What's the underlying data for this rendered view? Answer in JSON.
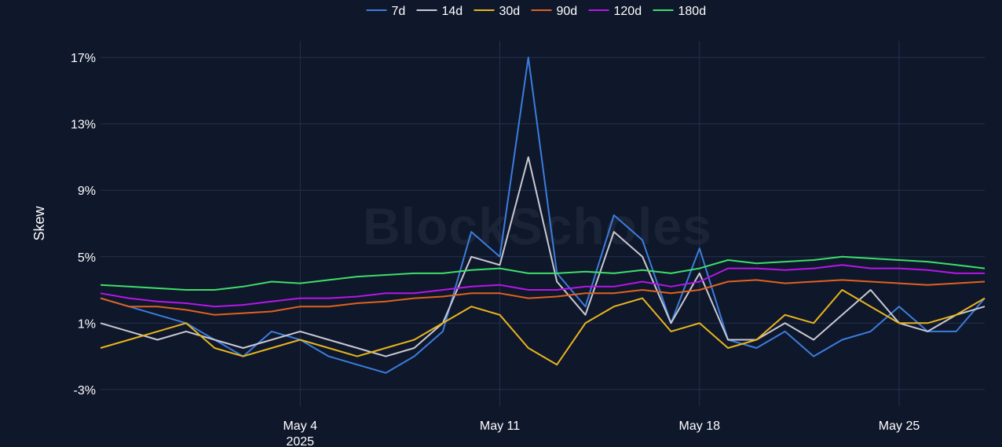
{
  "watermark": "BlockScholes",
  "colors": {
    "background": "#0f172b",
    "grid": "#25304d",
    "text": "#ffffff"
  },
  "chart_data": {
    "type": "line",
    "ylabel": "Skew",
    "xlabel": "",
    "ylim": [
      -4,
      18
    ],
    "yticks": [
      -3,
      1,
      5,
      9,
      13,
      17
    ],
    "ytick_labels": [
      "-3%",
      "1%",
      "5%",
      "9%",
      "13%",
      "17%"
    ],
    "x_range": [
      "2025-04-27",
      "2025-05-28"
    ],
    "xticks": [
      "2025-05-04",
      "2025-05-11",
      "2025-05-18",
      "2025-05-25"
    ],
    "xtick_labels": [
      "May 4",
      "May 11",
      "May 18",
      "May 25"
    ],
    "xtick_year_label": "2025",
    "grid": true,
    "legend_position": "top-center",
    "series": [
      {
        "name": "7d",
        "color": "#3b7ddd",
        "x": [
          "2025-04-27",
          "2025-04-28",
          "2025-04-29",
          "2025-04-30",
          "2025-05-01",
          "2025-05-02",
          "2025-05-03",
          "2025-05-04",
          "2025-05-05",
          "2025-05-06",
          "2025-05-07",
          "2025-05-08",
          "2025-05-09",
          "2025-05-10",
          "2025-05-11",
          "2025-05-12",
          "2025-05-13",
          "2025-05-14",
          "2025-05-15",
          "2025-05-16",
          "2025-05-17",
          "2025-05-18",
          "2025-05-19",
          "2025-05-20",
          "2025-05-21",
          "2025-05-22",
          "2025-05-23",
          "2025-05-24",
          "2025-05-25",
          "2025-05-26",
          "2025-05-27",
          "2025-05-28"
        ],
        "values": [
          2.5,
          2.0,
          1.5,
          1.0,
          0.0,
          -1.0,
          0.5,
          0.0,
          -1.0,
          -1.5,
          -2.0,
          -1.0,
          0.5,
          6.5,
          5.0,
          17.0,
          4.0,
          2.0,
          7.5,
          6.0,
          1.0,
          5.5,
          0.0,
          -0.5,
          0.5,
          -1.0,
          0.0,
          0.5,
          2.0,
          0.5,
          0.5,
          2.5
        ]
      },
      {
        "name": "14d",
        "color": "#c9c9d2",
        "x": [
          "2025-04-27",
          "2025-04-28",
          "2025-04-29",
          "2025-04-30",
          "2025-05-01",
          "2025-05-02",
          "2025-05-03",
          "2025-05-04",
          "2025-05-05",
          "2025-05-06",
          "2025-05-07",
          "2025-05-08",
          "2025-05-09",
          "2025-05-10",
          "2025-05-11",
          "2025-05-12",
          "2025-05-13",
          "2025-05-14",
          "2025-05-15",
          "2025-05-16",
          "2025-05-17",
          "2025-05-18",
          "2025-05-19",
          "2025-05-20",
          "2025-05-21",
          "2025-05-22",
          "2025-05-23",
          "2025-05-24",
          "2025-05-25",
          "2025-05-26",
          "2025-05-27",
          "2025-05-28"
        ],
        "values": [
          1.0,
          0.5,
          0.0,
          0.5,
          0.0,
          -0.5,
          0.0,
          0.5,
          0.0,
          -0.5,
          -1.0,
          -0.5,
          1.0,
          5.0,
          4.5,
          11.0,
          3.5,
          1.5,
          6.5,
          5.0,
          1.0,
          4.0,
          0.0,
          0.0,
          1.0,
          0.0,
          1.5,
          3.0,
          1.0,
          0.5,
          1.5,
          2.0
        ]
      },
      {
        "name": "30d",
        "color": "#e8b51e",
        "x": [
          "2025-04-27",
          "2025-04-28",
          "2025-04-29",
          "2025-04-30",
          "2025-05-01",
          "2025-05-02",
          "2025-05-03",
          "2025-05-04",
          "2025-05-05",
          "2025-05-06",
          "2025-05-07",
          "2025-05-08",
          "2025-05-09",
          "2025-05-10",
          "2025-05-11",
          "2025-05-12",
          "2025-05-13",
          "2025-05-14",
          "2025-05-15",
          "2025-05-16",
          "2025-05-17",
          "2025-05-18",
          "2025-05-19",
          "2025-05-20",
          "2025-05-21",
          "2025-05-22",
          "2025-05-23",
          "2025-05-24",
          "2025-05-25",
          "2025-05-26",
          "2025-05-27",
          "2025-05-28"
        ],
        "values": [
          -0.5,
          0.0,
          0.5,
          1.0,
          -0.5,
          -1.0,
          -0.5,
          0.0,
          -0.5,
          -1.0,
          -0.5,
          0.0,
          1.0,
          2.0,
          1.5,
          -0.5,
          -1.5,
          1.0,
          2.0,
          2.5,
          0.5,
          1.0,
          -0.5,
          0.0,
          1.5,
          1.0,
          3.0,
          2.0,
          1.0,
          1.0,
          1.5,
          2.5
        ]
      },
      {
        "name": "90d",
        "color": "#e0621d",
        "x": [
          "2025-04-27",
          "2025-04-28",
          "2025-04-29",
          "2025-04-30",
          "2025-05-01",
          "2025-05-02",
          "2025-05-03",
          "2025-05-04",
          "2025-05-05",
          "2025-05-06",
          "2025-05-07",
          "2025-05-08",
          "2025-05-09",
          "2025-05-10",
          "2025-05-11",
          "2025-05-12",
          "2025-05-13",
          "2025-05-14",
          "2025-05-15",
          "2025-05-16",
          "2025-05-17",
          "2025-05-18",
          "2025-05-19",
          "2025-05-20",
          "2025-05-21",
          "2025-05-22",
          "2025-05-23",
          "2025-05-24",
          "2025-05-25",
          "2025-05-26",
          "2025-05-27",
          "2025-05-28"
        ],
        "values": [
          2.5,
          2.0,
          2.0,
          1.8,
          1.5,
          1.6,
          1.7,
          2.0,
          2.0,
          2.2,
          2.3,
          2.5,
          2.6,
          2.8,
          2.8,
          2.5,
          2.6,
          2.8,
          2.8,
          3.0,
          2.8,
          3.0,
          3.5,
          3.6,
          3.4,
          3.5,
          3.6,
          3.5,
          3.4,
          3.3,
          3.4,
          3.5
        ]
      },
      {
        "name": "120d",
        "color": "#b517e8",
        "x": [
          "2025-04-27",
          "2025-04-28",
          "2025-04-29",
          "2025-04-30",
          "2025-05-01",
          "2025-05-02",
          "2025-05-03",
          "2025-05-04",
          "2025-05-05",
          "2025-05-06",
          "2025-05-07",
          "2025-05-08",
          "2025-05-09",
          "2025-05-10",
          "2025-05-11",
          "2025-05-12",
          "2025-05-13",
          "2025-05-14",
          "2025-05-15",
          "2025-05-16",
          "2025-05-17",
          "2025-05-18",
          "2025-05-19",
          "2025-05-20",
          "2025-05-21",
          "2025-05-22",
          "2025-05-23",
          "2025-05-24",
          "2025-05-25",
          "2025-05-26",
          "2025-05-27",
          "2025-05-28"
        ],
        "values": [
          2.8,
          2.5,
          2.3,
          2.2,
          2.0,
          2.1,
          2.3,
          2.5,
          2.5,
          2.6,
          2.8,
          2.8,
          3.0,
          3.2,
          3.3,
          3.0,
          3.0,
          3.2,
          3.2,
          3.5,
          3.2,
          3.5,
          4.3,
          4.3,
          4.2,
          4.3,
          4.5,
          4.3,
          4.3,
          4.2,
          4.0,
          4.0
        ]
      },
      {
        "name": "180d",
        "color": "#3ede6a",
        "x": [
          "2025-04-27",
          "2025-04-28",
          "2025-04-29",
          "2025-04-30",
          "2025-05-01",
          "2025-05-02",
          "2025-05-03",
          "2025-05-04",
          "2025-05-05",
          "2025-05-06",
          "2025-05-07",
          "2025-05-08",
          "2025-05-09",
          "2025-05-10",
          "2025-05-11",
          "2025-05-12",
          "2025-05-13",
          "2025-05-14",
          "2025-05-15",
          "2025-05-16",
          "2025-05-17",
          "2025-05-18",
          "2025-05-19",
          "2025-05-20",
          "2025-05-21",
          "2025-05-22",
          "2025-05-23",
          "2025-05-24",
          "2025-05-25",
          "2025-05-26",
          "2025-05-27",
          "2025-05-28"
        ],
        "values": [
          3.3,
          3.2,
          3.1,
          3.0,
          3.0,
          3.2,
          3.5,
          3.4,
          3.6,
          3.8,
          3.9,
          4.0,
          4.0,
          4.2,
          4.3,
          4.0,
          4.0,
          4.1,
          4.0,
          4.2,
          4.0,
          4.3,
          4.8,
          4.6,
          4.7,
          4.8,
          5.0,
          4.9,
          4.8,
          4.7,
          4.5,
          4.3
        ]
      }
    ]
  }
}
